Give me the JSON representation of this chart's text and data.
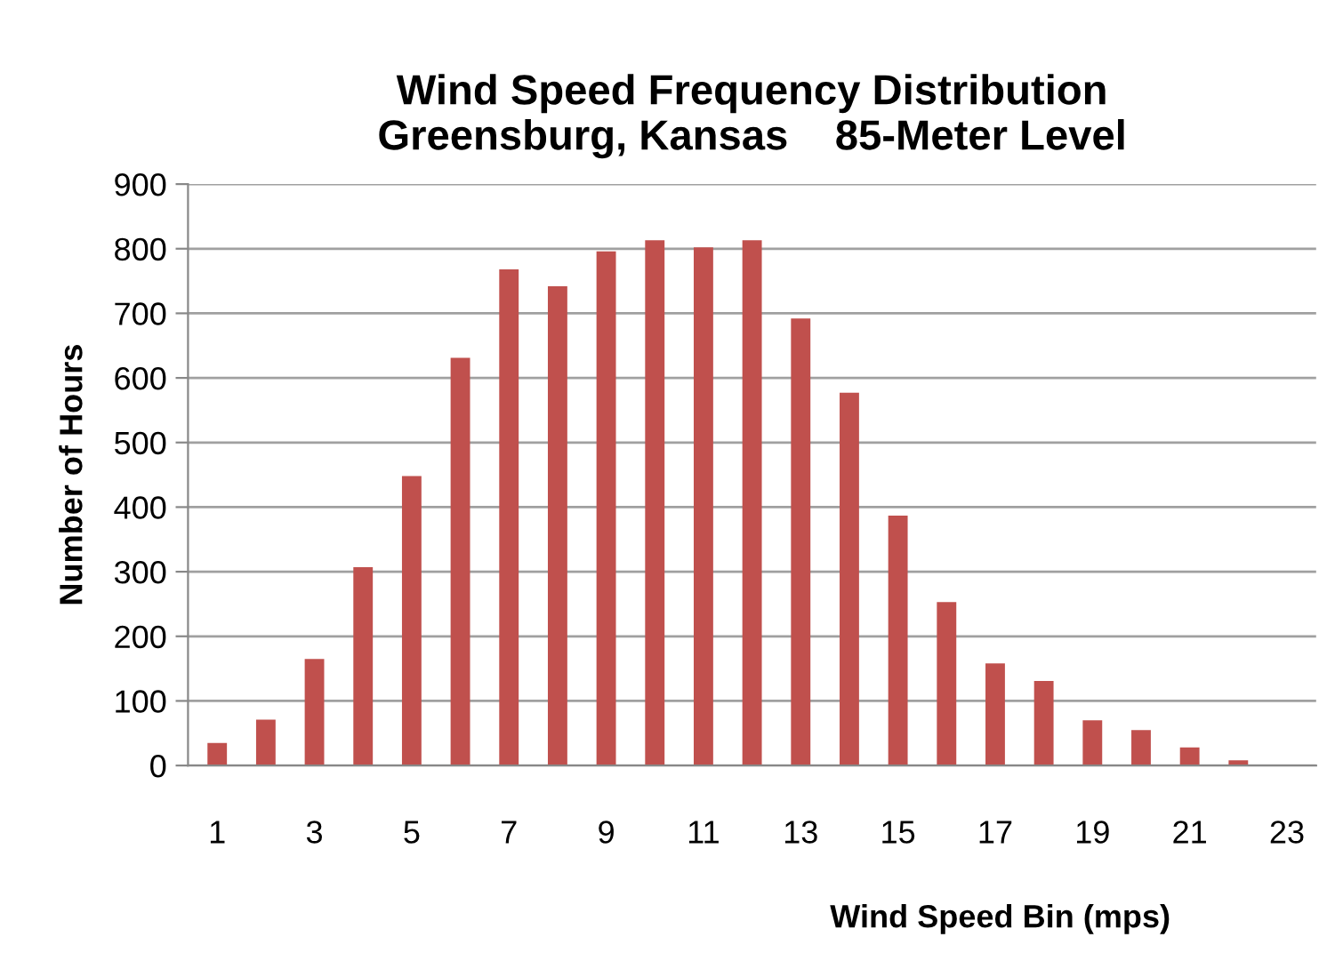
{
  "chart_data": {
    "type": "bar",
    "title": "Wind Speed Frequency Distribution\nGreensburg, Kansas    85-Meter Level",
    "xlabel": "Wind Speed Bin (mps)",
    "ylabel": "Number of Hours",
    "categories": [
      "1",
      null,
      "3",
      null,
      "5",
      null,
      "7",
      null,
      "9",
      null,
      "11",
      null,
      "13",
      null,
      "15",
      null,
      "17",
      null,
      "19",
      null,
      "21",
      null,
      "23"
    ],
    "values": [
      35,
      71,
      165,
      307,
      448,
      631,
      768,
      742,
      796,
      813,
      802,
      813,
      692,
      577,
      387,
      253,
      158,
      131,
      70,
      55,
      28,
      8,
      0
    ],
    "color": "#c0504d",
    "ylim": [
      0,
      900
    ],
    "yticks": [
      0,
      100,
      200,
      300,
      400,
      500,
      600,
      700,
      800,
      900
    ],
    "grid": "y",
    "legend": false
  }
}
